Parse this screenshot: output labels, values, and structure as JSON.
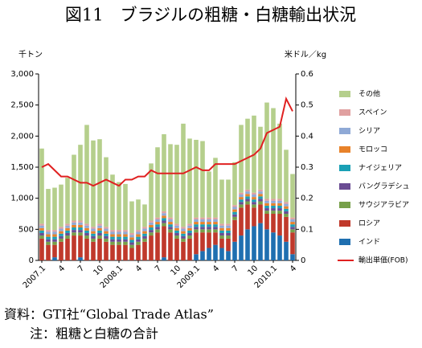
{
  "chart_data": {
    "type": "bar",
    "stacked": true,
    "title": "図11　ブラジルの粗糖・白糖輸出状況",
    "y_label": "千トン",
    "y2_label": "米ドル／kg",
    "notes": [
      "資料：GTI社“Global Trade Atlas”",
      "注：粗糖と白糖の合計"
    ],
    "categories": [
      "2007.1",
      null,
      null,
      "4",
      null,
      null,
      "7",
      null,
      null,
      "10",
      null,
      null,
      "2008.1",
      null,
      null,
      "4",
      null,
      null,
      "7",
      null,
      null,
      "10",
      null,
      null,
      "2009.1",
      null,
      null,
      "4",
      null,
      null,
      "7",
      null,
      null,
      "10",
      null,
      null,
      "2010.1",
      null,
      null,
      "4"
    ],
    "ylim": [
      0,
      3000
    ],
    "yticks": [
      {
        "value": 0,
        "label": "0"
      },
      {
        "value": 500,
        "label": "500"
      },
      {
        "value": 1000,
        "label": "1,000"
      },
      {
        "value": 1500,
        "label": "1,500"
      },
      {
        "value": 2000,
        "label": "2,000"
      },
      {
        "value": 2500,
        "label": "2,500"
      },
      {
        "value": 3000,
        "label": "3,000"
      }
    ],
    "y2lim": [
      0,
      0.6
    ],
    "y2ticks": [
      0,
      0.1,
      0.2,
      0.3,
      0.4,
      0.5,
      0.6
    ],
    "series": [
      {
        "name": "インド",
        "color": "#1f6fb0",
        "values": [
          0,
          0,
          50,
          0,
          0,
          0,
          50,
          0,
          0,
          0,
          0,
          0,
          0,
          0,
          0,
          0,
          0,
          0,
          0,
          50,
          0,
          0,
          0,
          0,
          100,
          150,
          200,
          250,
          200,
          150,
          300,
          400,
          500,
          550,
          600,
          500,
          450,
          400,
          300,
          100
        ]
      },
      {
        "name": "ロシア",
        "color": "#c0392b",
        "values": [
          350,
          250,
          200,
          300,
          350,
          400,
          350,
          350,
          300,
          350,
          300,
          250,
          250,
          250,
          200,
          250,
          300,
          400,
          450,
          500,
          450,
          350,
          300,
          350,
          350,
          300,
          250,
          200,
          150,
          200,
          350,
          450,
          400,
          300,
          300,
          250,
          300,
          350,
          400,
          350
        ]
      },
      {
        "name": "サウジアラビア",
        "color": "#77a04a",
        "values": [
          50,
          50,
          50,
          50,
          50,
          50,
          50,
          50,
          50,
          50,
          50,
          50,
          50,
          50,
          50,
          50,
          50,
          50,
          50,
          50,
          50,
          50,
          50,
          50,
          50,
          50,
          50,
          50,
          50,
          50,
          50,
          50,
          50,
          50,
          50,
          50,
          50,
          50,
          50,
          50
        ]
      },
      {
        "name": "バングラデシュ",
        "color": "#6a4c93",
        "values": [
          40,
          40,
          40,
          40,
          40,
          40,
          40,
          40,
          40,
          40,
          40,
          40,
          40,
          40,
          40,
          40,
          40,
          40,
          40,
          40,
          40,
          40,
          40,
          40,
          40,
          40,
          40,
          40,
          40,
          40,
          40,
          40,
          40,
          40,
          40,
          40,
          40,
          40,
          40,
          40
        ]
      },
      {
        "name": "ナイジェリア",
        "color": "#1aa0b5",
        "values": [
          40,
          40,
          40,
          40,
          40,
          40,
          40,
          40,
          40,
          40,
          40,
          40,
          40,
          40,
          40,
          40,
          40,
          40,
          40,
          40,
          40,
          40,
          40,
          40,
          40,
          40,
          40,
          40,
          40,
          40,
          40,
          40,
          40,
          40,
          40,
          40,
          40,
          40,
          40,
          40
        ]
      },
      {
        "name": "モロッコ",
        "color": "#e8822a",
        "values": [
          40,
          40,
          40,
          40,
          40,
          40,
          40,
          40,
          40,
          40,
          40,
          40,
          40,
          40,
          40,
          40,
          40,
          40,
          40,
          40,
          40,
          40,
          40,
          40,
          40,
          40,
          40,
          40,
          40,
          40,
          40,
          40,
          40,
          40,
          40,
          40,
          40,
          40,
          40,
          40
        ]
      },
      {
        "name": "シリア",
        "color": "#8fa9d6",
        "values": [
          40,
          40,
          40,
          40,
          40,
          40,
          40,
          40,
          40,
          40,
          40,
          40,
          40,
          40,
          40,
          40,
          40,
          40,
          40,
          40,
          40,
          40,
          40,
          40,
          40,
          40,
          40,
          40,
          40,
          40,
          40,
          40,
          40,
          40,
          40,
          40,
          40,
          40,
          40,
          40
        ]
      },
      {
        "name": "スペイン",
        "color": "#e0a0a0",
        "values": [
          30,
          30,
          30,
          30,
          30,
          30,
          30,
          30,
          30,
          30,
          30,
          30,
          30,
          30,
          30,
          30,
          30,
          30,
          30,
          30,
          30,
          30,
          30,
          30,
          30,
          30,
          30,
          30,
          30,
          30,
          30,
          30,
          30,
          30,
          30,
          30,
          30,
          30,
          30,
          30
        ]
      },
      {
        "name": "その他",
        "color": "#b5cf8c",
        "values": [
          1210,
          660,
          680,
          680,
          740,
          1060,
          1220,
          1590,
          1390,
          1360,
          1120,
          890,
          770,
          740,
          510,
          490,
          360,
          920,
          1130,
          1240,
          1180,
          1270,
          1660,
          1370,
          1250,
          1230,
          740,
          960,
          710,
          710,
          690,
          1090,
          1140,
          1240,
          1010,
          1550,
          1460,
          1210,
          840,
          700
        ]
      },
      {
        "name": "輸出単価(FOB)",
        "color": "#e02020",
        "type": "line",
        "axis": "y2",
        "values": [
          0.3,
          0.31,
          0.29,
          0.27,
          0.27,
          0.26,
          0.25,
          0.25,
          0.24,
          0.25,
          0.26,
          0.25,
          0.24,
          0.26,
          0.26,
          0.27,
          0.27,
          0.29,
          0.28,
          0.28,
          0.28,
          0.28,
          0.28,
          0.29,
          0.3,
          0.29,
          0.29,
          0.31,
          0.31,
          0.31,
          0.31,
          0.32,
          0.33,
          0.34,
          0.36,
          0.41,
          0.42,
          0.43,
          0.52,
          0.48
        ]
      }
    ]
  }
}
